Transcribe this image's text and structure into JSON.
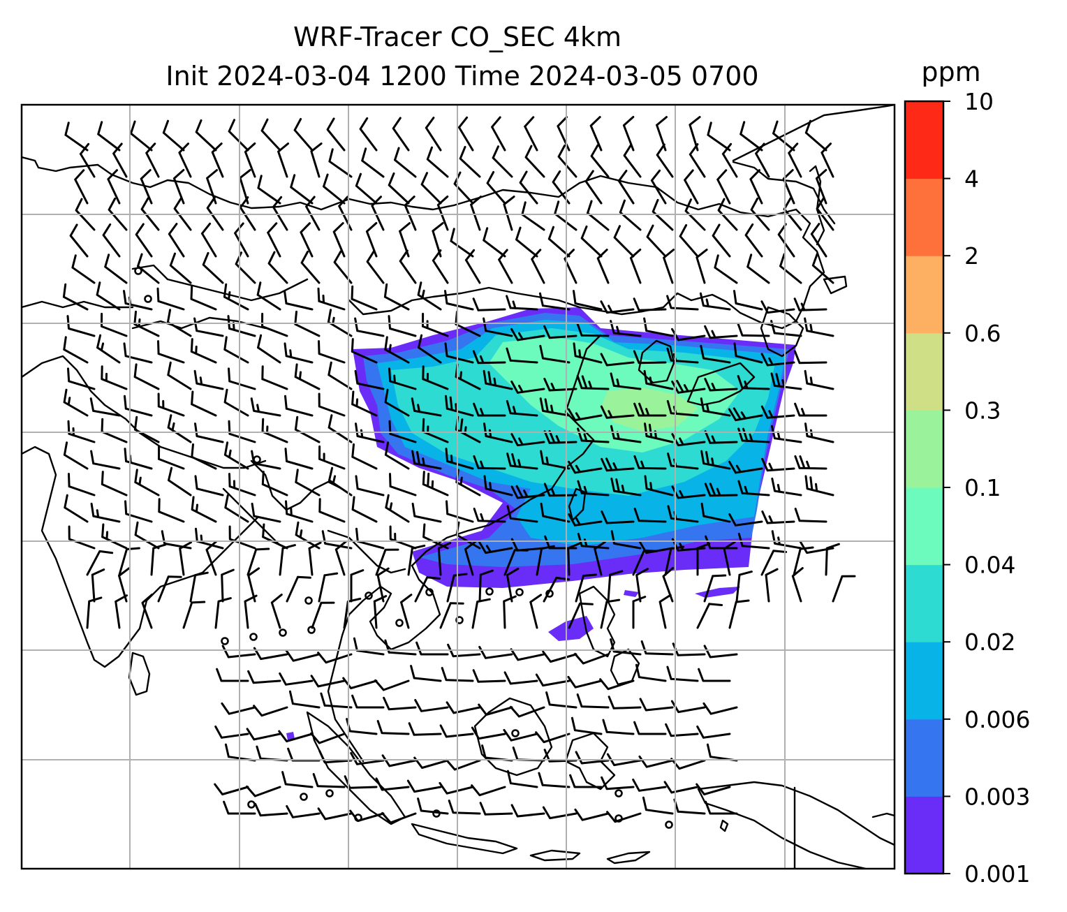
{
  "title": {
    "line1": "WRF-Tracer CO_SEC 4km",
    "line2": "Init 2024-03-04 1200 Time 2024-03-05 0700"
  },
  "colorbar": {
    "unit": "ppm",
    "levels": [
      "0.001",
      "0.003",
      "0.006",
      "0.02",
      "0.04",
      "0.1",
      "0.3",
      "0.6",
      "2",
      "4",
      "10"
    ],
    "colors": [
      "#6a2cf7",
      "#3576f0",
      "#08b3e8",
      "#2edbd3",
      "#6cfbbc",
      "#9af39a",
      "#cfdf85",
      "#feb062",
      "#fe713b",
      "#fe2a17"
    ]
  },
  "map": {
    "region": "East / Southeast Asia",
    "gridlines": true,
    "wind": "barbs"
  }
}
